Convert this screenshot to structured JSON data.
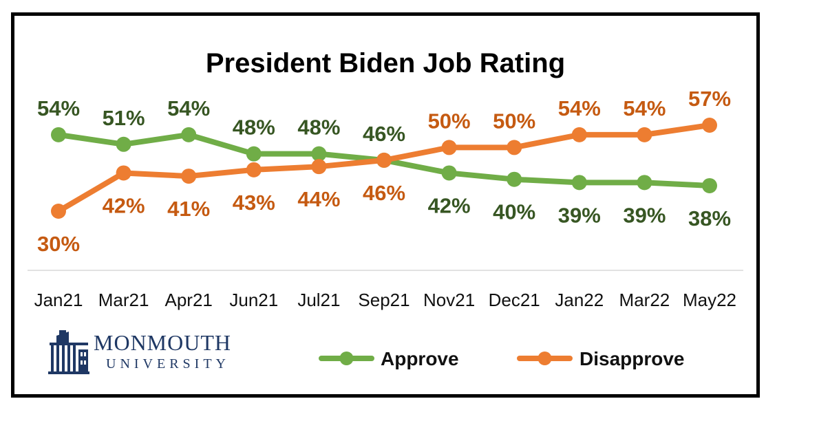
{
  "colors": {
    "approve": "#70ad47",
    "approve_label": "#375623",
    "disapprove": "#ed7d31",
    "disapprove_label": "#c55a11",
    "logo": "#1f3864"
  },
  "logo": {
    "name": "MONMOUTH",
    "subtitle": "UNIVERSITY",
    "icon": "building-icon"
  },
  "chart_data": {
    "type": "line",
    "title": "President Biden Job Rating",
    "xlabel": "",
    "ylabel": "",
    "ylim": [
      0,
      100
    ],
    "grid": false,
    "legend_position": "bottom-right",
    "categories": [
      "Jan21",
      "Mar21",
      "Apr21",
      "Jun21",
      "Jul21",
      "Sep21",
      "Nov21",
      "Dec21",
      "Jan22",
      "Mar22",
      "May22"
    ],
    "series": [
      {
        "name": "Approve",
        "values": [
          54,
          51,
          54,
          48,
          48,
          46,
          42,
          40,
          39,
          39,
          38
        ],
        "labels": [
          "54%",
          "51%",
          "54%",
          "48%",
          "48%",
          "46%",
          "42%",
          "40%",
          "39%",
          "39%",
          "38%"
        ]
      },
      {
        "name": "Disapprove",
        "values": [
          30,
          42,
          41,
          43,
          44,
          46,
          50,
          50,
          54,
          54,
          57
        ],
        "labels": [
          "30%",
          "42%",
          "41%",
          "43%",
          "44%",
          "46%",
          "50%",
          "50%",
          "54%",
          "54%",
          "57%"
        ]
      }
    ]
  }
}
